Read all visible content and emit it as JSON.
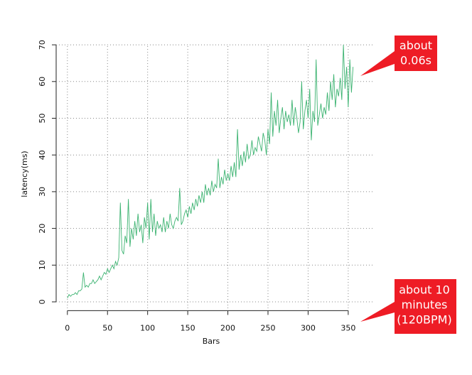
{
  "chart_data": {
    "type": "line",
    "x_label": "Bars",
    "y_label": "latency(ms)",
    "x": [
      0,
      2,
      4,
      6,
      8,
      10,
      12,
      14,
      16,
      18,
      20,
      22,
      24,
      26,
      28,
      30,
      32,
      34,
      36,
      38,
      40,
      42,
      44,
      46,
      48,
      50,
      52,
      54,
      56,
      58,
      60,
      62,
      64,
      66,
      68,
      70,
      72,
      74,
      76,
      78,
      80,
      82,
      84,
      86,
      88,
      90,
      92,
      94,
      96,
      98,
      100,
      102,
      104,
      106,
      108,
      110,
      112,
      114,
      116,
      118,
      120,
      122,
      124,
      126,
      128,
      130,
      132,
      134,
      136,
      138,
      140,
      142,
      144,
      146,
      148,
      150,
      152,
      154,
      156,
      158,
      160,
      162,
      164,
      166,
      168,
      170,
      172,
      174,
      176,
      178,
      180,
      182,
      184,
      186,
      188,
      190,
      192,
      194,
      196,
      198,
      200,
      202,
      204,
      206,
      208,
      210,
      212,
      214,
      216,
      218,
      220,
      222,
      224,
      226,
      228,
      230,
      232,
      234,
      236,
      238,
      240,
      242,
      244,
      246,
      248,
      250,
      252,
      254,
      256,
      258,
      260,
      262,
      264,
      266,
      268,
      270,
      272,
      274,
      276,
      278,
      280,
      282,
      284,
      286,
      288,
      290,
      292,
      294,
      296,
      298,
      300,
      302,
      304,
      306,
      308,
      310,
      312,
      314,
      316,
      318,
      320,
      322,
      324,
      326,
      328,
      330,
      332,
      334,
      336,
      338,
      340,
      342,
      344,
      346,
      348,
      350,
      352,
      354,
      356
    ],
    "series": [
      {
        "color": "#3cb371",
        "values": [
          1,
          2,
          1.5,
          2,
          2,
          2.5,
          2,
          3,
          3,
          3.5,
          8,
          4,
          4.5,
          4,
          5,
          5,
          6,
          5,
          5.5,
          6,
          7,
          6,
          7,
          8,
          7.5,
          9,
          8,
          9,
          10,
          9,
          11,
          10,
          12,
          27,
          14,
          13,
          18,
          16,
          28,
          15,
          20,
          17,
          22,
          18,
          24,
          19,
          21,
          16,
          23,
          20,
          27,
          17,
          28,
          19,
          24,
          18,
          22,
          20,
          21,
          19,
          23,
          19,
          22,
          20,
          24,
          21,
          20,
          22,
          23,
          22,
          31,
          21,
          22,
          24,
          25,
          23,
          26,
          24,
          27,
          25,
          28,
          26,
          29,
          27,
          30,
          27,
          32,
          29,
          31,
          29,
          33,
          30,
          32,
          31,
          39,
          31,
          34,
          32,
          36,
          33,
          35,
          33,
          37,
          34,
          38,
          34,
          47,
          36,
          40,
          37,
          41,
          38,
          43,
          39,
          40,
          44,
          40,
          42,
          41,
          45,
          43,
          41,
          46,
          44,
          40,
          47,
          43,
          57,
          45,
          52,
          48,
          55,
          46,
          50,
          53,
          47,
          52,
          49,
          51,
          48,
          55,
          48,
          53,
          50,
          46,
          49,
          60,
          47,
          52,
          55,
          50,
          58,
          44,
          52,
          49,
          66,
          48,
          51,
          54,
          50,
          53,
          51,
          57,
          52,
          60,
          55,
          62,
          53,
          58,
          56,
          61,
          55,
          70,
          58,
          64,
          53,
          66,
          57,
          64
        ]
      }
    ],
    "xlim": [
      -14,
      382
    ],
    "ylim": [
      -2.4,
      72.4
    ],
    "xticks": [
      0,
      50,
      100,
      150,
      200,
      250,
      300,
      350
    ],
    "yticks": [
      0,
      10,
      20,
      30,
      40,
      50,
      60,
      70
    ],
    "grid": true,
    "annotations": [
      {
        "lines": [
          "about",
          "0.06s"
        ]
      },
      {
        "lines": [
          "about 10",
          "minutes",
          "(120BPM)"
        ]
      }
    ]
  }
}
